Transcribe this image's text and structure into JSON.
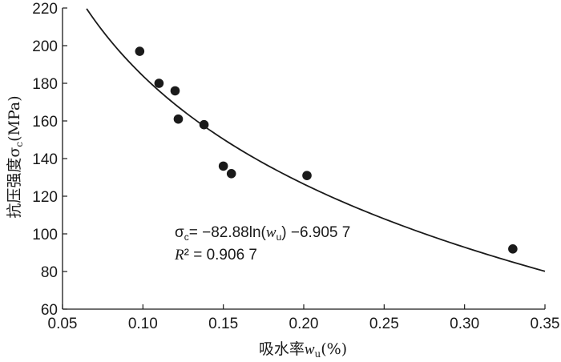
{
  "chart_data": {
    "type": "scatter",
    "xlabel": "吸水率",
    "xlabel_var": "w",
    "xlabel_sub": "u",
    "xlabel_unit": "(%)",
    "ylabel": "抗压强度",
    "ylabel_var": "σ",
    "ylabel_sub": "c",
    "ylabel_unit": "(MPa)",
    "xlim": [
      0.05,
      0.35
    ],
    "ylim": [
      60,
      220
    ],
    "xticks": [
      "0.05",
      "0.10",
      "0.15",
      "0.20",
      "0.25",
      "0.30",
      "0.35"
    ],
    "yticks": [
      "60",
      "80",
      "100",
      "120",
      "140",
      "160",
      "180",
      "200",
      "220"
    ],
    "grid": false,
    "points": [
      {
        "x": 0.098,
        "y": 197
      },
      {
        "x": 0.11,
        "y": 180
      },
      {
        "x": 0.12,
        "y": 176
      },
      {
        "x": 0.122,
        "y": 161
      },
      {
        "x": 0.138,
        "y": 158
      },
      {
        "x": 0.15,
        "y": 136
      },
      {
        "x": 0.155,
        "y": 132
      },
      {
        "x": 0.202,
        "y": 131
      },
      {
        "x": 0.33,
        "y": 92
      }
    ],
    "fit": {
      "a": -82.88,
      "b": -6.9057,
      "x_start": 0.065,
      "x_end": 0.35
    },
    "equation": {
      "lhs_var": "σ",
      "lhs_sub": "c",
      "rhs_part1": "= −82.88ln(",
      "rhs_var": "w",
      "rhs_sub": "u",
      "rhs_part2": ") −6.905 7",
      "r2_var": "R",
      "r2_text": "² = 0.906 7"
    },
    "colors": {
      "points": "#1a1a1a",
      "line": "#1a1a1a",
      "axis": "#1a1a1a"
    }
  }
}
